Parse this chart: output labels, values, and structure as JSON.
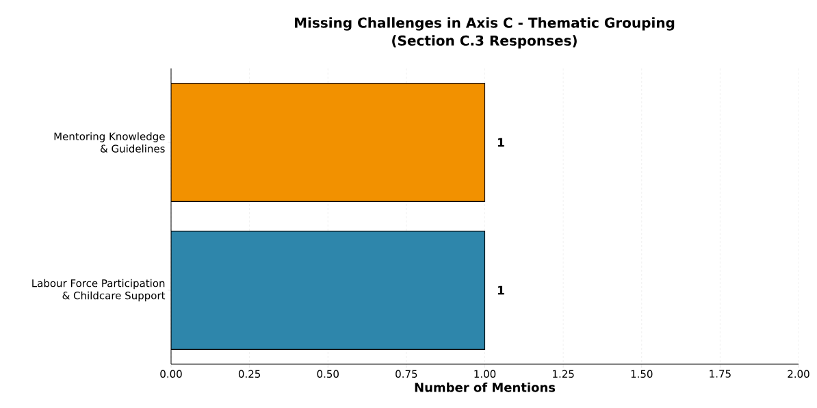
{
  "chart_data": {
    "type": "bar",
    "orientation": "horizontal",
    "title": "Missing Challenges in Axis C - Thematic Grouping",
    "subtitle": "(Section C.3 Responses)",
    "xlabel": "Number of Mentions",
    "categories": [
      "Mentoring Knowledge\n& Guidelines",
      "Labour Force Participation\n& Childcare Support"
    ],
    "values": [
      1,
      1
    ],
    "colors": [
      "#f29100",
      "#2e86ab"
    ],
    "data_labels": true,
    "xlim": [
      0,
      2
    ],
    "xticks": [
      {
        "value": 0,
        "label": "0.00"
      },
      {
        "value": 0.25,
        "label": "0.25"
      },
      {
        "value": 0.5,
        "label": "0.50"
      },
      {
        "value": 0.75,
        "label": "0.75"
      },
      {
        "value": 1,
        "label": "1.00"
      },
      {
        "value": 1.25,
        "label": "1.25"
      },
      {
        "value": 1.5,
        "label": "1.50"
      },
      {
        "value": 1.75,
        "label": "1.75"
      },
      {
        "value": 2,
        "label": "2.00"
      }
    ],
    "grid": "x"
  }
}
